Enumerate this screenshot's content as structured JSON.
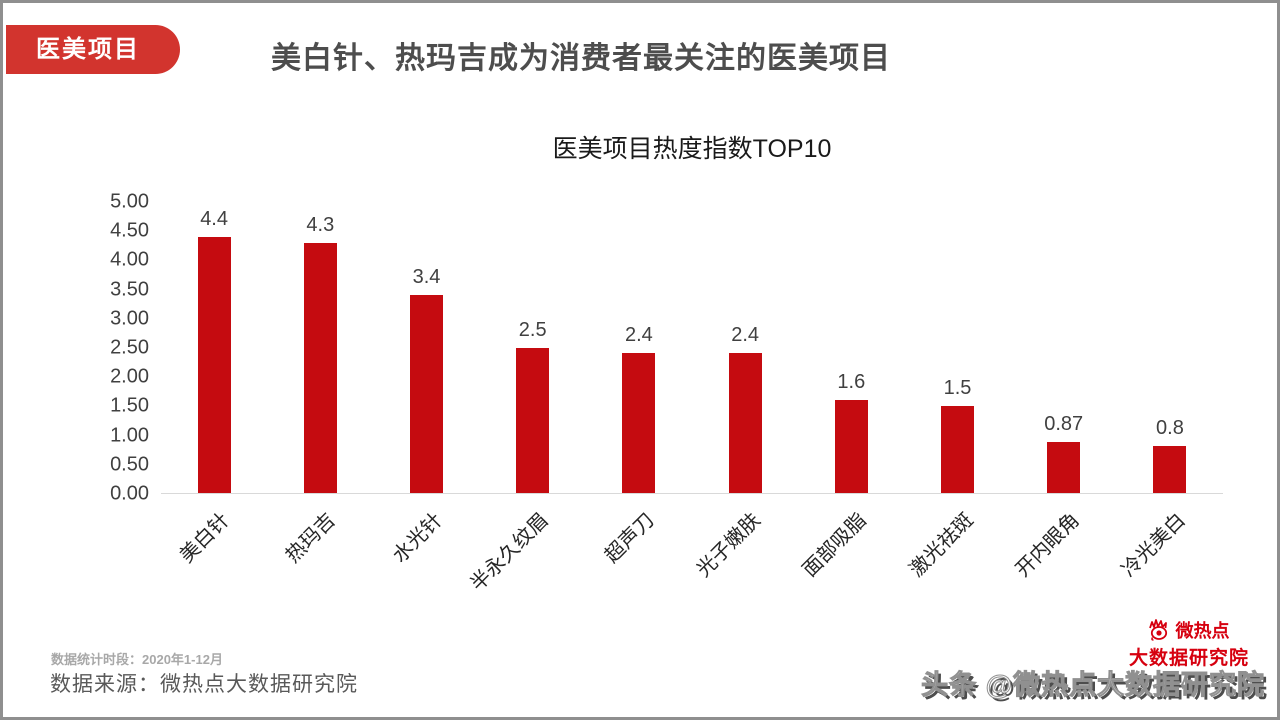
{
  "badge": {
    "label": "医美项目"
  },
  "header": {
    "title": "美白针、热玛吉成为消费者最关注的医美项目"
  },
  "chart_data": {
    "type": "bar",
    "title": "医美项目热度指数TOP10",
    "categories": [
      "美白针",
      "热玛吉",
      "水光针",
      "半永久纹眉",
      "超声刀",
      "光子嫩肤",
      "面部吸脂",
      "激光祛斑",
      "开内眼角",
      "冷光美白"
    ],
    "values": [
      4.4,
      4.3,
      3.4,
      2.5,
      2.4,
      2.4,
      1.6,
      1.5,
      0.87,
      0.8
    ],
    "value_labels": [
      "4.4",
      "4.3",
      "3.4",
      "2.5",
      "2.4",
      "2.4",
      "1.6",
      "1.5",
      "0.87",
      "0.8"
    ],
    "xlabel": "",
    "ylabel": "",
    "ylim": [
      0,
      5
    ],
    "yticks": [
      "5.00",
      "4.50",
      "4.00",
      "3.50",
      "3.00",
      "2.50",
      "2.00",
      "1.50",
      "1.00",
      "0.50",
      "0.00"
    ],
    "grid": false,
    "legend": "none",
    "bar_color": "#C50B10"
  },
  "footer": {
    "period_label": "数据统计时段：2020年1-12月",
    "source_label": "数据来源：微热点大数据研究院"
  },
  "branding": {
    "logo_line1": "微热点",
    "logo_line2": "大数据研究院",
    "watermark": "头条 @微热点大数据研究院"
  },
  "colors": {
    "bar_red": "#C50B10",
    "badge_red": "#D2342E",
    "logo_red": "#D6000F",
    "title_gray": "#4D4D4D",
    "axis_line": "#D9D9D9"
  }
}
